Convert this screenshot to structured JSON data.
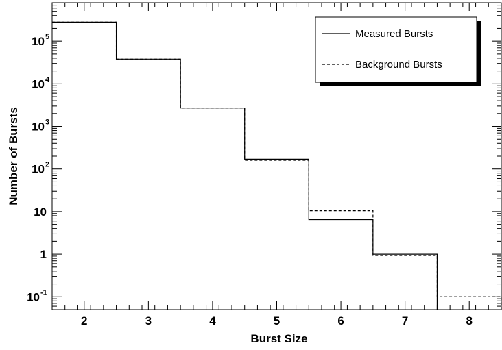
{
  "chart_data": {
    "type": "line",
    "xlabel": "Burst Size",
    "ylabel": "Number of Bursts",
    "xlim": [
      1.5,
      8.5
    ],
    "ylim": [
      0.05,
      800000
    ],
    "yscale": "log",
    "x_ticks": [
      {
        "value": 2,
        "label": "2"
      },
      {
        "value": 3,
        "label": "3"
      },
      {
        "value": 4,
        "label": "4"
      },
      {
        "value": 5,
        "label": "5"
      },
      {
        "value": 6,
        "label": "6"
      },
      {
        "value": 7,
        "label": "7"
      },
      {
        "value": 8,
        "label": "8"
      }
    ],
    "y_ticks": [
      {
        "value": 0.1,
        "base": "10",
        "exp": "-1"
      },
      {
        "value": 1,
        "base": "1",
        "exp": ""
      },
      {
        "value": 10,
        "base": "10",
        "exp": ""
      },
      {
        "value": 100,
        "base": "10",
        "exp": "2"
      },
      {
        "value": 1000,
        "base": "10",
        "exp": "3"
      },
      {
        "value": 10000,
        "base": "10",
        "exp": "4"
      },
      {
        "value": 100000,
        "base": "10",
        "exp": "5"
      }
    ],
    "grid": false,
    "legend_position": "top-right",
    "series": [
      {
        "name": "Measured Bursts",
        "style": "solid",
        "bins": [
          {
            "x0": 1.5,
            "x1": 2.5,
            "y": 280000
          },
          {
            "x0": 2.5,
            "x1": 3.5,
            "y": 38000
          },
          {
            "x0": 3.5,
            "x1": 4.5,
            "y": 2700
          },
          {
            "x0": 4.5,
            "x1": 5.5,
            "y": 170
          },
          {
            "x0": 5.5,
            "x1": 6.5,
            "y": 6.5
          },
          {
            "x0": 6.5,
            "x1": 7.5,
            "y": 1.0
          }
        ]
      },
      {
        "name": "Background Bursts",
        "style": "dashed",
        "bins": [
          {
            "x0": 1.5,
            "x1": 2.5,
            "y": 280000
          },
          {
            "x0": 2.5,
            "x1": 3.5,
            "y": 38000
          },
          {
            "x0": 3.5,
            "x1": 4.5,
            "y": 2700
          },
          {
            "x0": 4.5,
            "x1": 5.5,
            "y": 160
          },
          {
            "x0": 5.5,
            "x1": 6.5,
            "y": 10.5
          },
          {
            "x0": 6.5,
            "x1": 7.5,
            "y": 0.93
          },
          {
            "x0": 7.5,
            "x1": 8.5,
            "y": 0.1
          }
        ]
      }
    ]
  },
  "colors": {
    "axis": "#000000",
    "line": "#000000",
    "background": "#ffffff",
    "legend_shadow": "#000000"
  }
}
